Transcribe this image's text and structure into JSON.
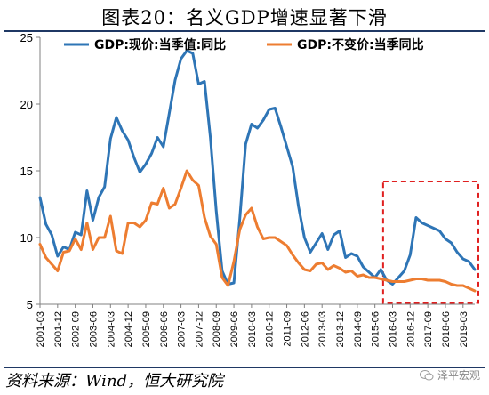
{
  "figure": {
    "title": "图表20：名义GDP增速显著下滑",
    "source": "资料来源：Wind，恒大研究院",
    "watermark": "泽平宏观",
    "watermark_icon": "wechat-icon"
  },
  "chart_data": {
    "type": "line",
    "title": "图表20：名义GDP增速显著下滑",
    "xlabel": "",
    "ylabel": "",
    "ylim": [
      5,
      25
    ],
    "yticks": [
      5,
      10,
      15,
      20,
      25
    ],
    "grid": false,
    "legend_position": "top",
    "x": [
      "2001-03",
      "2001-06",
      "2001-09",
      "2001-12",
      "2002-03",
      "2002-06",
      "2002-09",
      "2002-12",
      "2003-03",
      "2003-06",
      "2003-09",
      "2003-12",
      "2004-03",
      "2004-06",
      "2004-09",
      "2004-12",
      "2005-03",
      "2005-06",
      "2005-09",
      "2005-12",
      "2006-03",
      "2006-06",
      "2006-09",
      "2006-12",
      "2007-03",
      "2007-06",
      "2007-09",
      "2007-12",
      "2008-03",
      "2008-06",
      "2008-09",
      "2008-12",
      "2009-03",
      "2009-06",
      "2009-09",
      "2009-12",
      "2010-03",
      "2010-06",
      "2010-09",
      "2010-12",
      "2011-03",
      "2011-06",
      "2011-09",
      "2011-12",
      "2012-03",
      "2012-06",
      "2012-09",
      "2012-12",
      "2013-03",
      "2013-06",
      "2013-09",
      "2013-12",
      "2014-03",
      "2014-06",
      "2014-09",
      "2014-12",
      "2015-03",
      "2015-06",
      "2015-09",
      "2015-12",
      "2016-03",
      "2016-06",
      "2016-09",
      "2016-12",
      "2017-03",
      "2017-06",
      "2017-09",
      "2017-12",
      "2018-03",
      "2018-06",
      "2018-09",
      "2018-12",
      "2019-03",
      "2019-06",
      "2019-09"
    ],
    "x_tick_labels": [
      "2001-03",
      "2001-12",
      "2002-09",
      "2003-06",
      "2004-03",
      "2004-12",
      "2005-09",
      "2006-06",
      "2007-03",
      "2007-12",
      "2008-09",
      "2009-06",
      "2010-03",
      "2010-12",
      "2011-09",
      "2012-06",
      "2013-03",
      "2013-12",
      "2014-09",
      "2015-06",
      "2016-03",
      "2016-12",
      "2017-09",
      "2018-06",
      "2019-03"
    ],
    "series": [
      {
        "name": "GDP:现价:当季值:同比",
        "color": "#2e75b6",
        "values": [
          13.0,
          11.0,
          10.2,
          8.6,
          9.3,
          9.1,
          10.4,
          10.2,
          13.5,
          11.3,
          13.0,
          13.8,
          17.4,
          19.0,
          18.0,
          17.3,
          16.0,
          14.9,
          15.5,
          16.3,
          17.5,
          16.8,
          19.3,
          21.8,
          23.4,
          24.0,
          23.8,
          21.5,
          21.7,
          17.5,
          12.0,
          7.5,
          6.5,
          6.6,
          11.4,
          17.0,
          18.5,
          18.2,
          18.8,
          19.6,
          19.7,
          18.3,
          16.8,
          15.3,
          12.3,
          10.0,
          8.9,
          9.6,
          10.3,
          9.1,
          10.2,
          10.5,
          8.5,
          8.8,
          8.6,
          7.8,
          7.4,
          7.0,
          7.6,
          6.8,
          6.5,
          7.0,
          7.5,
          8.7,
          11.5,
          11.1,
          10.9,
          10.7,
          10.5,
          9.9,
          9.6,
          8.9,
          8.4,
          8.2,
          7.6
        ]
      },
      {
        "name": "GDP:不变价:当季同比",
        "color": "#ed7d31",
        "values": [
          9.5,
          8.5,
          8.0,
          7.5,
          8.9,
          9.0,
          9.9,
          9.1,
          11.1,
          9.1,
          10.0,
          10.0,
          11.6,
          9.0,
          8.8,
          11.1,
          11.1,
          10.8,
          11.3,
          12.6,
          12.5,
          13.7,
          12.2,
          12.5,
          13.7,
          15.0,
          14.3,
          13.9,
          11.5,
          10.1,
          9.5,
          7.0,
          6.4,
          8.2,
          10.6,
          11.7,
          12.2,
          10.8,
          9.9,
          10.0,
          10.0,
          9.7,
          9.4,
          8.7,
          8.1,
          7.6,
          7.5,
          8.0,
          8.1,
          7.6,
          7.9,
          7.7,
          7.4,
          7.5,
          7.1,
          7.2,
          7.0,
          7.0,
          6.9,
          6.8,
          6.7,
          6.7,
          6.7,
          6.8,
          6.9,
          6.9,
          6.8,
          6.8,
          6.8,
          6.7,
          6.5,
          6.4,
          6.4,
          6.2,
          6.0
        ]
      }
    ],
    "highlight_box": {
      "x_start": "2015-12",
      "x_end": "2019-09",
      "y_range": [
        5.1,
        14.2
      ],
      "style": "dashed",
      "color": "#e02020"
    }
  }
}
